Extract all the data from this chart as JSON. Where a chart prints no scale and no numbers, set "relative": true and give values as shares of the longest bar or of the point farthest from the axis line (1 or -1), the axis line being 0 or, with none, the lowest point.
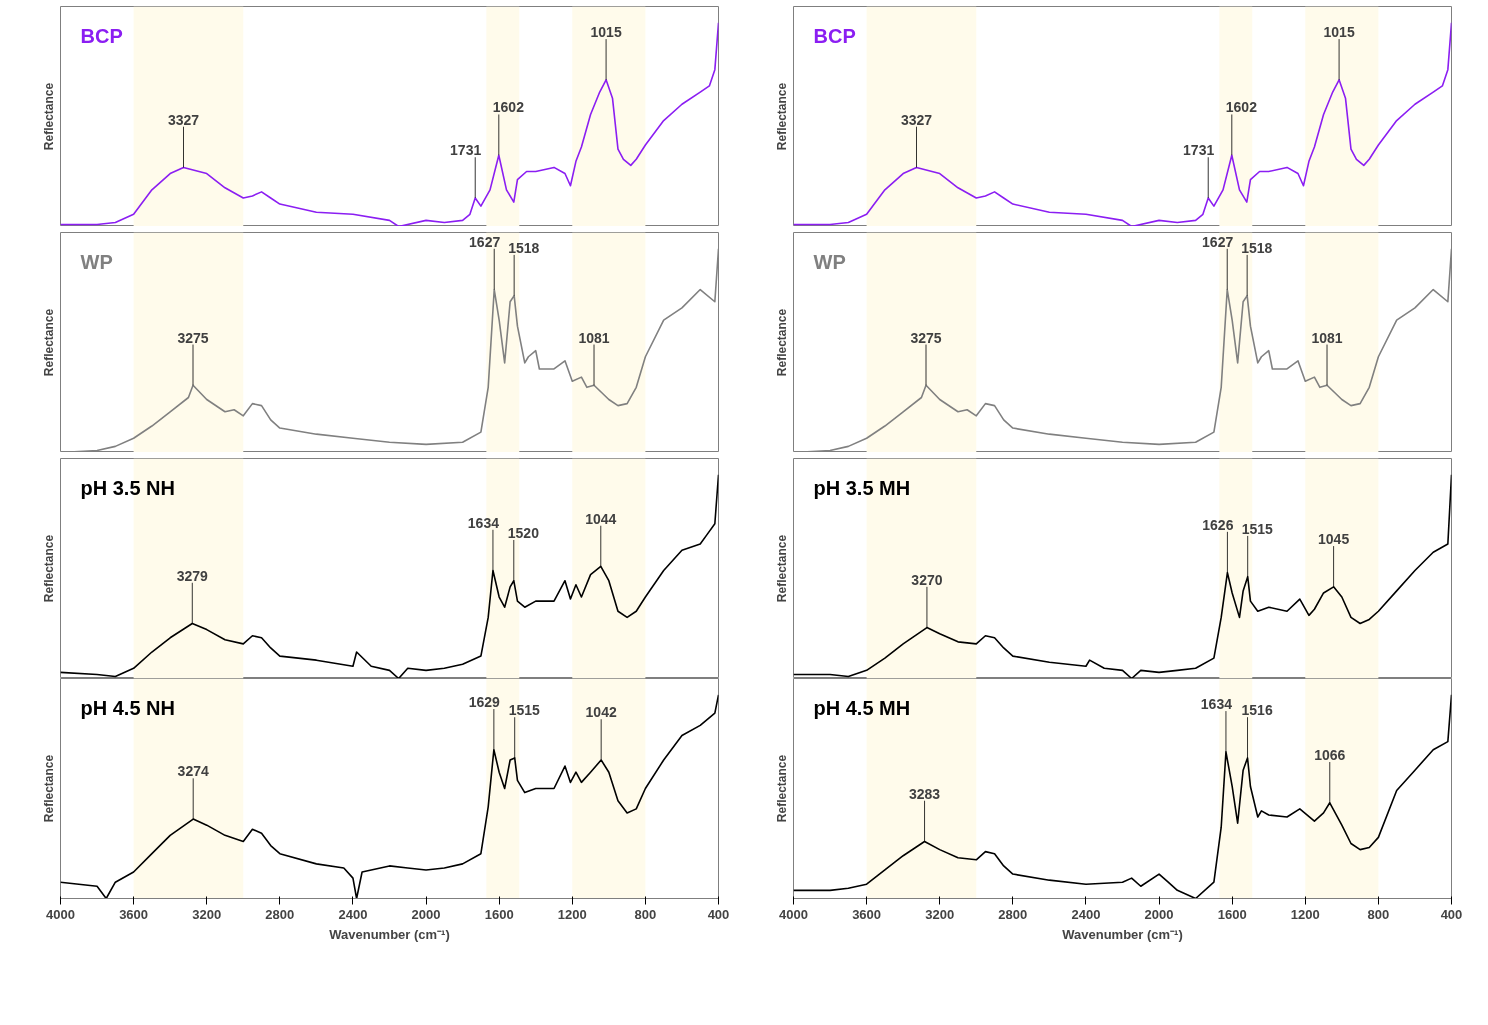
{
  "chart_data": [
    {
      "type": "line",
      "title": "BCP",
      "ylabel": "Reflectance",
      "relative": true,
      "xlim": [
        4000,
        400
      ],
      "xticks": [
        4000,
        3600,
        3200,
        2800,
        2400,
        2000,
        1600,
        1200,
        800,
        400
      ],
      "tick_labels": false,
      "bands": [
        {
          "axis": "x",
          "from": 3600,
          "to": 3000,
          "color": "#fffbeb"
        },
        {
          "axis": "x",
          "from": 1670,
          "to": 1490,
          "color": "#fffbeb"
        },
        {
          "axis": "x",
          "from": 1200,
          "to": 800,
          "color": "#fffbeb"
        }
      ],
      "x": [
        4000,
        3800,
        3700,
        3600,
        3500,
        3400,
        3327,
        3200,
        3100,
        3000,
        2950,
        2900,
        2850,
        2800,
        2600,
        2400,
        2200,
        2150,
        2000,
        1900,
        1800,
        1760,
        1731,
        1700,
        1650,
        1602,
        1560,
        1520,
        1500,
        1450,
        1400,
        1300,
        1240,
        1210,
        1180,
        1150,
        1100,
        1050,
        1015,
        980,
        950,
        920,
        880,
        850,
        800,
        700,
        600,
        500,
        450,
        420,
        400
      ],
      "series": [
        {
          "color": "#8b1ef2",
          "values": [
            0.01,
            0.01,
            0.02,
            0.06,
            0.18,
            0.26,
            0.29,
            0.26,
            0.19,
            0.14,
            0.15,
            0.17,
            0.14,
            0.11,
            0.07,
            0.06,
            0.03,
            0,
            0.03,
            0.02,
            0.03,
            0.06,
            0.14,
            0.1,
            0.18,
            0.35,
            0.18,
            0.12,
            0.23,
            0.27,
            0.27,
            0.29,
            0.26,
            0.2,
            0.32,
            0.39,
            0.55,
            0.66,
            0.72,
            0.63,
            0.38,
            0.33,
            0.3,
            0.33,
            0.4,
            0.52,
            0.6,
            0.66,
            0.69,
            0.77,
            1
          ]
        }
      ],
      "annotations": [
        {
          "text": "3327",
          "x": 3327,
          "y": 0.29
        },
        {
          "text": "1731",
          "x": 1731,
          "y": 0.14
        },
        {
          "text": "1602",
          "x": 1602,
          "y": 0.35
        },
        {
          "text": "1015",
          "x": 1015,
          "y": 0.72
        }
      ]
    },
    {
      "type": "line",
      "title": "BCP",
      "ylabel": "Reflectance",
      "relative": true,
      "xlim": [
        4000,
        400
      ],
      "xticks": [
        4000,
        3600,
        3200,
        2800,
        2400,
        2000,
        1600,
        1200,
        800,
        400
      ],
      "tick_labels": false,
      "bands": [
        {
          "axis": "x",
          "from": 3600,
          "to": 3000,
          "color": "#fffbeb"
        },
        {
          "axis": "x",
          "from": 1670,
          "to": 1490,
          "color": "#fffbeb"
        },
        {
          "axis": "x",
          "from": 1200,
          "to": 800,
          "color": "#fffbeb"
        }
      ],
      "x": [
        4000,
        3800,
        3700,
        3600,
        3500,
        3400,
        3327,
        3200,
        3100,
        3000,
        2950,
        2900,
        2850,
        2800,
        2600,
        2400,
        2200,
        2150,
        2000,
        1900,
        1800,
        1760,
        1731,
        1700,
        1650,
        1602,
        1560,
        1520,
        1500,
        1450,
        1400,
        1300,
        1240,
        1210,
        1180,
        1150,
        1100,
        1050,
        1015,
        980,
        950,
        920,
        880,
        850,
        800,
        700,
        600,
        500,
        450,
        420,
        400
      ],
      "series": [
        {
          "color": "#8b1ef2",
          "values": [
            0.01,
            0.01,
            0.02,
            0.06,
            0.18,
            0.26,
            0.29,
            0.26,
            0.19,
            0.14,
            0.15,
            0.17,
            0.14,
            0.11,
            0.07,
            0.06,
            0.03,
            0,
            0.03,
            0.02,
            0.03,
            0.06,
            0.14,
            0.1,
            0.18,
            0.35,
            0.18,
            0.12,
            0.23,
            0.27,
            0.27,
            0.29,
            0.26,
            0.2,
            0.32,
            0.39,
            0.55,
            0.66,
            0.72,
            0.63,
            0.38,
            0.33,
            0.3,
            0.33,
            0.4,
            0.52,
            0.6,
            0.66,
            0.69,
            0.77,
            1
          ]
        }
      ],
      "annotations": [
        {
          "text": "3327",
          "x": 3327,
          "y": 0.29
        },
        {
          "text": "1731",
          "x": 1731,
          "y": 0.14
        },
        {
          "text": "1602",
          "x": 1602,
          "y": 0.35
        },
        {
          "text": "1015",
          "x": 1015,
          "y": 0.72
        }
      ]
    },
    {
      "type": "line",
      "title": "WP",
      "ylabel": "Reflectance",
      "relative": true,
      "xlim": [
        4000,
        400
      ],
      "xticks": [
        4000,
        3600,
        3200,
        2800,
        2400,
        2000,
        1600,
        1200,
        800,
        400
      ],
      "tick_labels": false,
      "bands": [
        {
          "axis": "x",
          "from": 3600,
          "to": 3000,
          "color": "#fffbeb"
        },
        {
          "axis": "x",
          "from": 1670,
          "to": 1490,
          "color": "#fffbeb"
        },
        {
          "axis": "x",
          "from": 1200,
          "to": 800,
          "color": "#fffbeb"
        }
      ],
      "x": [
        4000,
        3800,
        3700,
        3600,
        3500,
        3400,
        3300,
        3275,
        3200,
        3100,
        3050,
        3000,
        2950,
        2900,
        2850,
        2800,
        2600,
        2400,
        2200,
        2000,
        1800,
        1700,
        1660,
        1627,
        1600,
        1570,
        1540,
        1518,
        1500,
        1460,
        1440,
        1400,
        1380,
        1300,
        1240,
        1200,
        1150,
        1120,
        1081,
        1000,
        950,
        900,
        850,
        800,
        700,
        600,
        500,
        420,
        400
      ],
      "series": [
        {
          "color": "#808080",
          "values": [
            0,
            0.01,
            0.03,
            0.07,
            0.13,
            0.2,
            0.27,
            0.33,
            0.26,
            0.2,
            0.21,
            0.18,
            0.24,
            0.23,
            0.16,
            0.12,
            0.09,
            0.07,
            0.05,
            0.04,
            0.05,
            0.1,
            0.32,
            0.8,
            0.65,
            0.44,
            0.74,
            0.77,
            0.62,
            0.44,
            0.47,
            0.5,
            0.41,
            0.41,
            0.45,
            0.35,
            0.37,
            0.32,
            0.33,
            0.26,
            0.23,
            0.24,
            0.32,
            0.47,
            0.65,
            0.71,
            0.8,
            0.74,
            1
          ]
        }
      ],
      "annotations": [
        {
          "text": "3275",
          "x": 3275,
          "y": 0.33
        },
        {
          "text": "1627",
          "x": 1627,
          "y": 0.8
        },
        {
          "text": "1518",
          "x": 1518,
          "y": 0.77
        },
        {
          "text": "1081",
          "x": 1081,
          "y": 0.33
        }
      ]
    },
    {
      "type": "line",
      "title": "WP",
      "ylabel": "Reflectance",
      "relative": true,
      "xlim": [
        4000,
        400
      ],
      "xticks": [
        4000,
        3600,
        3200,
        2800,
        2400,
        2000,
        1600,
        1200,
        800,
        400
      ],
      "tick_labels": false,
      "bands": [
        {
          "axis": "x",
          "from": 3600,
          "to": 3000,
          "color": "#fffbeb"
        },
        {
          "axis": "x",
          "from": 1670,
          "to": 1490,
          "color": "#fffbeb"
        },
        {
          "axis": "x",
          "from": 1200,
          "to": 800,
          "color": "#fffbeb"
        }
      ],
      "x": [
        4000,
        3800,
        3700,
        3600,
        3500,
        3400,
        3300,
        3275,
        3200,
        3100,
        3050,
        3000,
        2950,
        2900,
        2850,
        2800,
        2600,
        2400,
        2200,
        2000,
        1800,
        1700,
        1660,
        1627,
        1600,
        1570,
        1540,
        1518,
        1500,
        1460,
        1440,
        1400,
        1380,
        1300,
        1240,
        1200,
        1150,
        1120,
        1081,
        1000,
        950,
        900,
        850,
        800,
        700,
        600,
        500,
        420,
        400
      ],
      "series": [
        {
          "color": "#808080",
          "values": [
            0,
            0.01,
            0.03,
            0.07,
            0.13,
            0.2,
            0.27,
            0.33,
            0.26,
            0.2,
            0.21,
            0.18,
            0.24,
            0.23,
            0.16,
            0.12,
            0.09,
            0.07,
            0.05,
            0.04,
            0.05,
            0.1,
            0.32,
            0.8,
            0.65,
            0.44,
            0.74,
            0.77,
            0.62,
            0.44,
            0.47,
            0.5,
            0.41,
            0.41,
            0.45,
            0.35,
            0.37,
            0.32,
            0.33,
            0.26,
            0.23,
            0.24,
            0.32,
            0.47,
            0.65,
            0.71,
            0.8,
            0.74,
            1
          ]
        }
      ],
      "annotations": [
        {
          "text": "3275",
          "x": 3275,
          "y": 0.33
        },
        {
          "text": "1627",
          "x": 1627,
          "y": 0.8
        },
        {
          "text": "1518",
          "x": 1518,
          "y": 0.77
        },
        {
          "text": "1081",
          "x": 1081,
          "y": 0.33
        }
      ]
    },
    {
      "type": "line",
      "title": "pH 3.5 NH",
      "ylabel": "Reflectance",
      "relative": true,
      "xlim": [
        4000,
        400
      ],
      "xticks": [
        4000,
        3600,
        3200,
        2800,
        2400,
        2000,
        1600,
        1200,
        800,
        400
      ],
      "tick_labels": false,
      "bands": [
        {
          "axis": "x",
          "from": 3600,
          "to": 3000,
          "color": "#fffbeb"
        },
        {
          "axis": "x",
          "from": 1670,
          "to": 1490,
          "color": "#fffbeb"
        },
        {
          "axis": "x",
          "from": 1200,
          "to": 800,
          "color": "#fffbeb"
        }
      ],
      "x": [
        4000,
        3800,
        3700,
        3600,
        3500,
        3400,
        3279,
        3200,
        3100,
        3000,
        2950,
        2900,
        2850,
        2800,
        2600,
        2400,
        2380,
        2300,
        2200,
        2150,
        2100,
        2000,
        1900,
        1800,
        1700,
        1660,
        1634,
        1600,
        1570,
        1540,
        1520,
        1500,
        1460,
        1400,
        1300,
        1240,
        1210,
        1180,
        1150,
        1100,
        1044,
        1000,
        950,
        900,
        850,
        800,
        700,
        600,
        500,
        460,
        420,
        400
      ],
      "series": [
        {
          "color": "#000000",
          "values": [
            0.03,
            0.02,
            0.01,
            0.05,
            0.13,
            0.2,
            0.27,
            0.24,
            0.19,
            0.17,
            0.21,
            0.2,
            0.15,
            0.11,
            0.09,
            0.06,
            0.13,
            0.06,
            0.04,
            0,
            0.05,
            0.04,
            0.05,
            0.07,
            0.11,
            0.3,
            0.53,
            0.4,
            0.35,
            0.45,
            0.48,
            0.38,
            0.35,
            0.38,
            0.38,
            0.48,
            0.39,
            0.46,
            0.4,
            0.51,
            0.55,
            0.48,
            0.33,
            0.3,
            0.33,
            0.4,
            0.53,
            0.63,
            0.66,
            0.71,
            0.76,
            1
          ]
        }
      ],
      "annotations": [
        {
          "text": "3279",
          "x": 3279,
          "y": 0.27
        },
        {
          "text": "1634",
          "x": 1634,
          "y": 0.53
        },
        {
          "text": "1520",
          "x": 1520,
          "y": 0.48
        },
        {
          "text": "1044",
          "x": 1044,
          "y": 0.55
        }
      ]
    },
    {
      "type": "line",
      "title": "pH 3.5 MH",
      "ylabel": "Reflectance",
      "relative": true,
      "xlim": [
        4000,
        400
      ],
      "xticks": [
        4000,
        3600,
        3200,
        2800,
        2400,
        2000,
        1600,
        1200,
        800,
        400
      ],
      "tick_labels": false,
      "bands": [
        {
          "axis": "x",
          "from": 3600,
          "to": 3000,
          "color": "#fffbeb"
        },
        {
          "axis": "x",
          "from": 1670,
          "to": 1490,
          "color": "#fffbeb"
        },
        {
          "axis": "x",
          "from": 1200,
          "to": 800,
          "color": "#fffbeb"
        }
      ],
      "x": [
        4000,
        3800,
        3700,
        3600,
        3500,
        3400,
        3270,
        3200,
        3100,
        3000,
        2950,
        2900,
        2850,
        2800,
        2600,
        2400,
        2380,
        2300,
        2200,
        2150,
        2100,
        2000,
        1900,
        1800,
        1700,
        1660,
        1626,
        1600,
        1560,
        1540,
        1515,
        1500,
        1460,
        1400,
        1300,
        1230,
        1180,
        1150,
        1100,
        1045,
        1000,
        950,
        900,
        850,
        800,
        700,
        600,
        500,
        420,
        400
      ],
      "series": [
        {
          "color": "#000000",
          "values": [
            0.02,
            0.02,
            0.01,
            0.04,
            0.1,
            0.17,
            0.25,
            0.22,
            0.18,
            0.17,
            0.21,
            0.2,
            0.15,
            0.11,
            0.08,
            0.06,
            0.09,
            0.05,
            0.04,
            0,
            0.04,
            0.03,
            0.04,
            0.05,
            0.1,
            0.3,
            0.52,
            0.42,
            0.3,
            0.43,
            0.5,
            0.38,
            0.33,
            0.35,
            0.33,
            0.39,
            0.31,
            0.34,
            0.42,
            0.45,
            0.4,
            0.3,
            0.27,
            0.29,
            0.33,
            0.43,
            0.53,
            0.62,
            0.66,
            1
          ]
        }
      ],
      "annotations": [
        {
          "text": "3270",
          "x": 3270,
          "y": 0.25
        },
        {
          "text": "1626",
          "x": 1626,
          "y": 0.52
        },
        {
          "text": "1515",
          "x": 1515,
          "y": 0.5
        },
        {
          "text": "1045",
          "x": 1045,
          "y": 0.45
        }
      ]
    },
    {
      "type": "line",
      "title": "pH 4.5 NH",
      "ylabel": "Reflectance",
      "xlabel": "Wavenumber (cm⁻¹)",
      "relative": true,
      "xlim": [
        4000,
        400
      ],
      "xticks": [
        4000,
        3600,
        3200,
        2800,
        2400,
        2000,
        1600,
        1200,
        800,
        400
      ],
      "tick_labels": "x",
      "bands": [
        {
          "axis": "x",
          "from": 3600,
          "to": 3000,
          "color": "#fffbeb"
        },
        {
          "axis": "x",
          "from": 1670,
          "to": 1490,
          "color": "#fffbeb"
        },
        {
          "axis": "x",
          "from": 1200,
          "to": 800,
          "color": "#fffbeb"
        }
      ],
      "x": [
        4000,
        3800,
        3750,
        3700,
        3600,
        3500,
        3400,
        3274,
        3200,
        3100,
        3000,
        2950,
        2900,
        2850,
        2800,
        2600,
        2450,
        2400,
        2380,
        2350,
        2200,
        2100,
        2000,
        1900,
        1800,
        1700,
        1660,
        1629,
        1600,
        1570,
        1540,
        1515,
        1500,
        1460,
        1400,
        1300,
        1240,
        1210,
        1180,
        1150,
        1100,
        1042,
        1000,
        950,
        900,
        850,
        800,
        700,
        650,
        600,
        500,
        420,
        400
      ],
      "series": [
        {
          "color": "#000000",
          "values": [
            0.08,
            0.06,
            0,
            0.08,
            0.13,
            0.22,
            0.31,
            0.39,
            0.36,
            0.31,
            0.28,
            0.34,
            0.32,
            0.26,
            0.22,
            0.17,
            0.15,
            0.1,
            0,
            0.13,
            0.16,
            0.15,
            0.14,
            0.15,
            0.17,
            0.22,
            0.45,
            0.73,
            0.62,
            0.54,
            0.68,
            0.69,
            0.58,
            0.52,
            0.54,
            0.54,
            0.65,
            0.57,
            0.62,
            0.57,
            0.62,
            0.68,
            0.62,
            0.48,
            0.42,
            0.44,
            0.54,
            0.68,
            0.74,
            0.8,
            0.85,
            0.91,
            1
          ]
        }
      ],
      "annotations": [
        {
          "text": "3274",
          "x": 3274,
          "y": 0.39
        },
        {
          "text": "1629",
          "x": 1629,
          "y": 0.73
        },
        {
          "text": "1515",
          "x": 1515,
          "y": 0.69
        },
        {
          "text": "1042",
          "x": 1042,
          "y": 0.68
        }
      ]
    },
    {
      "type": "line",
      "title": "pH 4.5 MH",
      "ylabel": "Reflectance",
      "xlabel": "Wavenumber (cm⁻¹)",
      "relative": true,
      "xlim": [
        4000,
        400
      ],
      "xticks": [
        4000,
        3600,
        3200,
        2800,
        2400,
        2000,
        1600,
        1200,
        800,
        400
      ],
      "tick_labels": "x",
      "bands": [
        {
          "axis": "x",
          "from": 3600,
          "to": 3000,
          "color": "#fffbeb"
        },
        {
          "axis": "x",
          "from": 1670,
          "to": 1490,
          "color": "#fffbeb"
        },
        {
          "axis": "x",
          "from": 1200,
          "to": 800,
          "color": "#fffbeb"
        }
      ],
      "x": [
        4000,
        3800,
        3700,
        3600,
        3500,
        3400,
        3283,
        3200,
        3100,
        3000,
        2950,
        2900,
        2850,
        2800,
        2600,
        2400,
        2200,
        2150,
        2100,
        2000,
        1950,
        1900,
        1800,
        1700,
        1660,
        1634,
        1600,
        1570,
        1540,
        1516,
        1500,
        1460,
        1440,
        1400,
        1300,
        1230,
        1150,
        1100,
        1066,
        1000,
        950,
        900,
        850,
        800,
        700,
        600,
        500,
        420,
        400
      ],
      "series": [
        {
          "color": "#000000",
          "values": [
            0.04,
            0.04,
            0.05,
            0.07,
            0.14,
            0.21,
            0.28,
            0.24,
            0.2,
            0.19,
            0.23,
            0.22,
            0.16,
            0.12,
            0.09,
            0.07,
            0.08,
            0.1,
            0.06,
            0.12,
            0.08,
            0.04,
            0,
            0.08,
            0.35,
            0.72,
            0.55,
            0.37,
            0.63,
            0.69,
            0.55,
            0.4,
            0.43,
            0.41,
            0.4,
            0.44,
            0.38,
            0.42,
            0.47,
            0.36,
            0.27,
            0.24,
            0.25,
            0.3,
            0.53,
            0.63,
            0.73,
            0.77,
            1
          ]
        }
      ],
      "annotations": [
        {
          "text": "3283",
          "x": 3283,
          "y": 0.28
        },
        {
          "text": "1634",
          "x": 1634,
          "y": 0.72
        },
        {
          "text": "1516",
          "x": 1516,
          "y": 0.69
        },
        {
          "text": "1066",
          "x": 1066,
          "y": 0.47
        }
      ]
    }
  ]
}
